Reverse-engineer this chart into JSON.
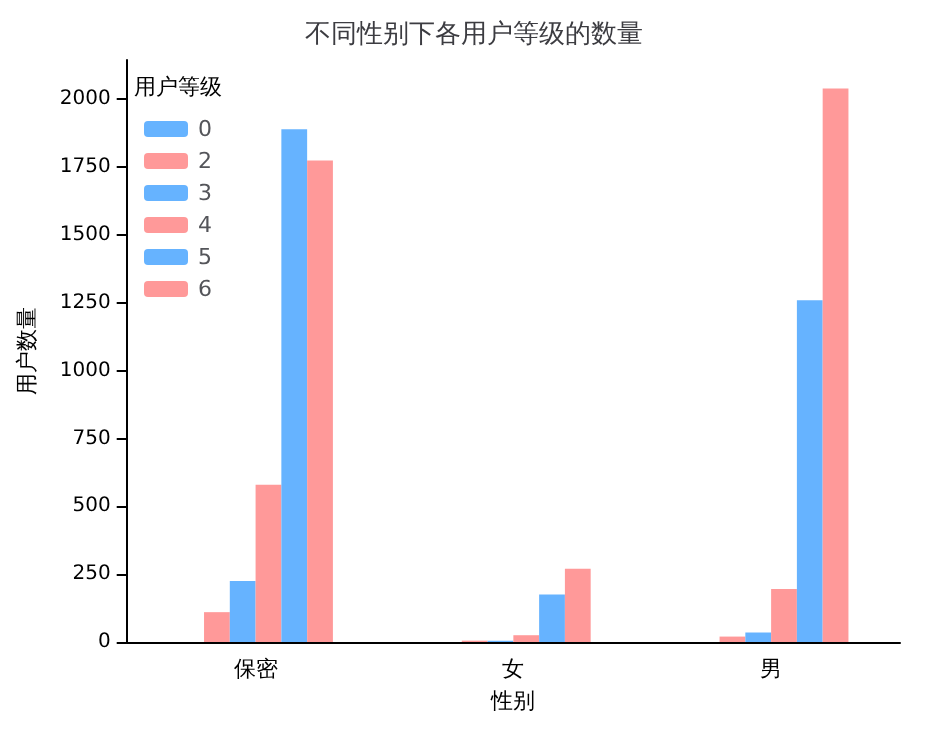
{
  "chart_data": {
    "type": "bar",
    "title": "不同性别下各用户等级的数量",
    "xlabel": "性别",
    "ylabel": "用户数量",
    "legend_title": "用户等级",
    "categories": [
      "保密",
      "女",
      "男"
    ],
    "series": [
      {
        "name": "0",
        "color": "#66b3ff",
        "values": [
          0,
          0,
          0
        ]
      },
      {
        "name": "2",
        "color": "#ff9999",
        "values": [
          110,
          5,
          20
        ]
      },
      {
        "name": "3",
        "color": "#66b3ff",
        "values": [
          225,
          5,
          35
        ]
      },
      {
        "name": "4",
        "color": "#ff9999",
        "values": [
          580,
          25,
          195
        ]
      },
      {
        "name": "5",
        "color": "#66b3ff",
        "values": [
          1890,
          175,
          1260
        ]
      },
      {
        "name": "6",
        "color": "#ff9999",
        "values": [
          1775,
          270,
          2040
        ]
      }
    ],
    "ylim": [
      0,
      2145
    ],
    "yticks": [
      0,
      250,
      500,
      750,
      1000,
      1250,
      1500,
      1750,
      2000
    ],
    "grid": false,
    "legend": "top left"
  }
}
